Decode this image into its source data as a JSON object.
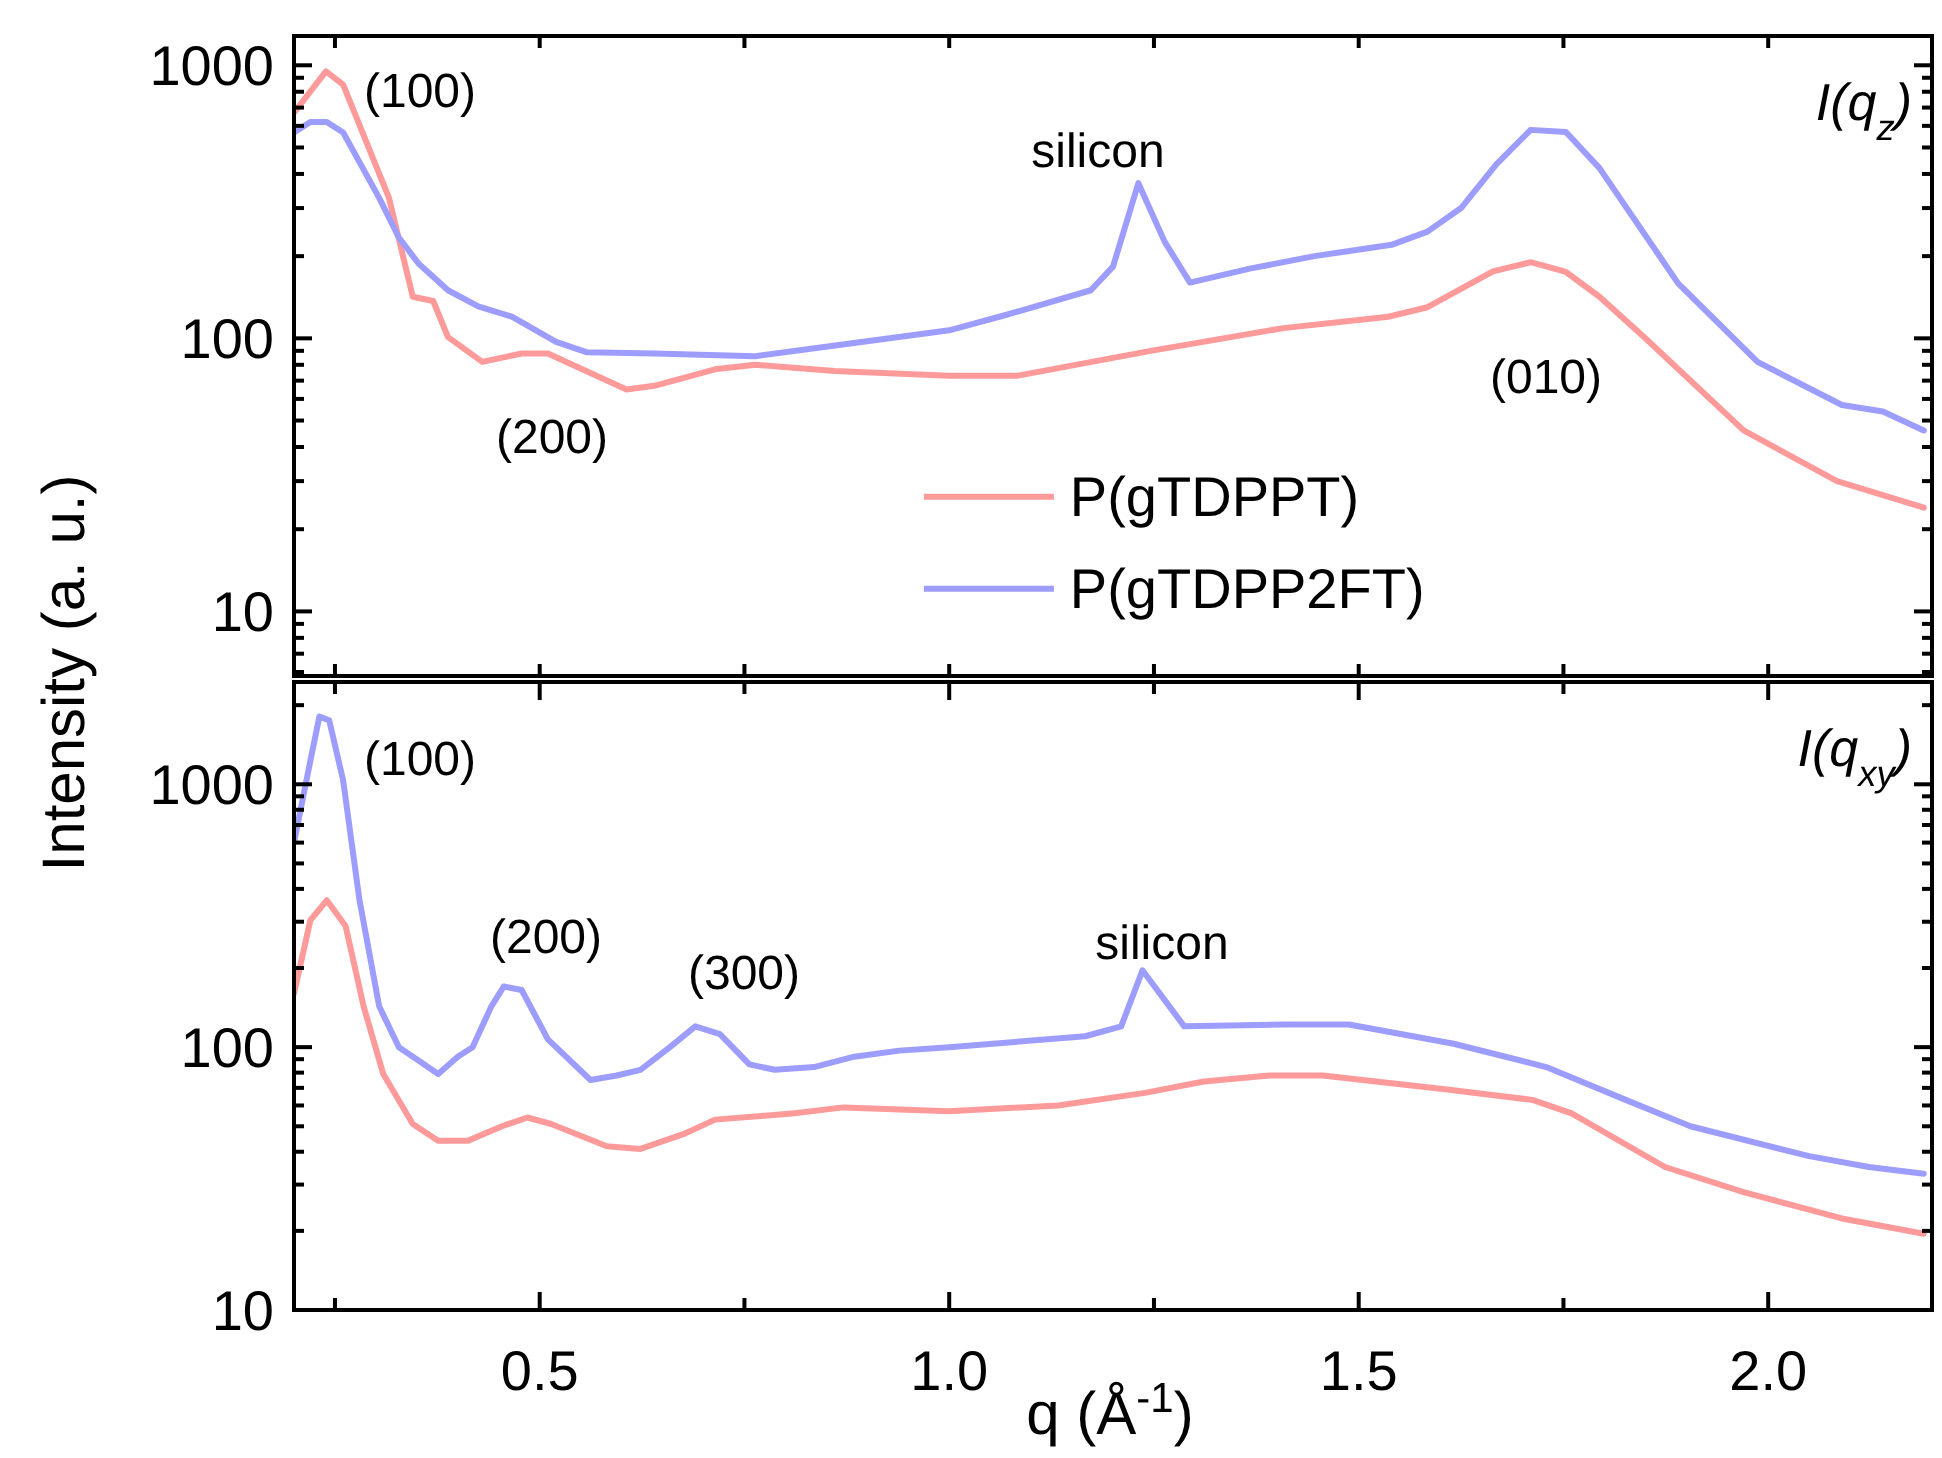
{
  "chart_data": [
    {
      "type": "line",
      "ylabel": "Intensity (a. u.)",
      "log": "y",
      "xlim": [
        0.2,
        2.2
      ],
      "ylim": [
        5.8,
        1280
      ],
      "xticks": [
        {
          "value": 0.25,
          "label": null
        },
        {
          "value": 0.5,
          "label": null
        },
        {
          "value": 0.75,
          "label": null
        },
        {
          "value": 1.0,
          "label": null
        },
        {
          "value": 1.25,
          "label": null
        },
        {
          "value": 1.5,
          "label": null
        },
        {
          "value": 1.75,
          "label": null
        },
        {
          "value": 2.0,
          "label": null
        }
      ],
      "yticks": [
        {
          "value": 6,
          "label": null
        },
        {
          "value": 7,
          "label": null
        },
        {
          "value": 8,
          "label": null
        },
        {
          "value": 9,
          "label": null
        },
        10,
        {
          "value": 20,
          "label": null
        },
        {
          "value": 30,
          "label": null
        },
        {
          "value": 40,
          "label": null
        },
        {
          "value": 50,
          "label": null
        },
        {
          "value": 60,
          "label": null
        },
        {
          "value": 70,
          "label": null
        },
        {
          "value": 80,
          "label": null
        },
        {
          "value": 90,
          "label": null
        },
        100,
        {
          "value": 200,
          "label": null
        },
        {
          "value": 300,
          "label": null
        },
        {
          "value": 400,
          "label": null
        },
        {
          "value": 500,
          "label": null
        },
        {
          "value": 600,
          "label": null
        },
        {
          "value": 700,
          "label": null
        },
        {
          "value": 800,
          "label": null
        },
        {
          "value": 900,
          "label": null
        },
        1000
      ],
      "tick_labels": "y",
      "grid": false,
      "legend": "bottom",
      "line_style": "solid",
      "marker": "none",
      "series": [
        {
          "name": "P(gTDPPT)",
          "color": "#ff9a9a",
          "x": [
            0.2,
            0.239,
            0.26,
            0.316,
            0.345,
            0.37,
            0.388,
            0.43,
            0.478,
            0.51,
            0.606,
            0.64,
            0.714,
            0.763,
            0.86,
            1.0,
            1.084,
            1.246,
            1.408,
            1.536,
            1.584,
            1.664,
            1.71,
            1.753,
            1.794,
            1.85,
            1.97,
            2.084,
            2.19
          ],
          "values": [
            670,
            950,
            850,
            327,
            142,
            137,
            101,
            82,
            88,
            88,
            65,
            67,
            77,
            80,
            76,
            73,
            73,
            90,
            109,
            120,
            130,
            176,
            190,
            175,
            142,
            100,
            46,
            30,
            24
          ]
        },
        {
          "name": "P(gTDPP2FT)",
          "color": "#9d9dff",
          "x": [
            0.2,
            0.22,
            0.24,
            0.26,
            0.304,
            0.328,
            0.352,
            0.388,
            0.425,
            0.466,
            0.52,
            0.557,
            0.64,
            0.763,
            0.87,
            1.0,
            1.07,
            1.173,
            1.2,
            1.231,
            1.263,
            1.294,
            1.367,
            1.446,
            1.54,
            1.584,
            1.625,
            1.668,
            1.71,
            1.753,
            1.794,
            1.89,
            1.987,
            2.09,
            2.14,
            2.19
          ],
          "values": [
            567,
            620,
            620,
            567,
            327,
            234,
            188,
            150,
            131,
            120,
            97,
            89,
            88,
            86,
            95,
            107,
            122,
            150,
            183,
            370,
            226,
            160,
            180,
            200,
            220,
            246,
            300,
            434,
            580,
            570,
            420,
            159,
            82,
            57,
            54,
            46
          ]
        }
      ],
      "annotations": [
        "(100)",
        "(200)",
        "silicon",
        "(010)",
        "I(q$_{z}$)"
      ]
    },
    {
      "type": "line",
      "xlabel": "q (Å$^{-1}$)",
      "log": "y",
      "xlim": [
        0.2,
        2.2
      ],
      "ylim": [
        10,
        2450
      ],
      "xticks": [
        {
          "value": 0.25,
          "label": null
        },
        0.5,
        {
          "value": 0.75,
          "label": null
        },
        {
          "value": 1.0,
          "label": "1.0"
        },
        {
          "value": 1.25,
          "label": null
        },
        1.5,
        {
          "value": 1.75,
          "label": null
        },
        {
          "value": 2.0,
          "label": "2.0"
        }
      ],
      "yticks": [
        10,
        {
          "value": 20,
          "label": null
        },
        {
          "value": 30,
          "label": null
        },
        {
          "value": 40,
          "label": null
        },
        {
          "value": 50,
          "label": null
        },
        {
          "value": 60,
          "label": null
        },
        {
          "value": 70,
          "label": null
        },
        {
          "value": 80,
          "label": null
        },
        {
          "value": 90,
          "label": null
        },
        100,
        {
          "value": 200,
          "label": null
        },
        {
          "value": 300,
          "label": null
        },
        {
          "value": 400,
          "label": null
        },
        {
          "value": 500,
          "label": null
        },
        {
          "value": 600,
          "label": null
        },
        {
          "value": 700,
          "label": null
        },
        {
          "value": 800,
          "label": null
        },
        {
          "value": 900,
          "label": null
        },
        1000,
        {
          "value": 2000,
          "label": null
        }
      ],
      "grid": false,
      "line_style": "solid",
      "marker": "none",
      "series": [
        {
          "color": "#ff9a9a",
          "x": [
            0.2,
            0.22,
            0.24,
            0.263,
            0.285,
            0.309,
            0.345,
            0.376,
            0.412,
            0.454,
            0.485,
            0.514,
            0.582,
            0.623,
            0.678,
            0.714,
            0.811,
            0.871,
            1.0,
            1.133,
            1.239,
            1.311,
            1.391,
            1.456,
            1.608,
            1.712,
            1.76,
            1.874,
            1.971,
            2.09,
            2.19
          ],
          "values": [
            160,
            304,
            362,
            289,
            143,
            79,
            51,
            44,
            44,
            50,
            54,
            51,
            42,
            41,
            47,
            53,
            56,
            59,
            57,
            60,
            67,
            74,
            78,
            78,
            69,
            63,
            56,
            35,
            28,
            22.3,
            19.5
          ]
        },
        {
          "color": "#9d9dff",
          "x": [
            0.2,
            0.22,
            0.231,
            0.243,
            0.26,
            0.28,
            0.304,
            0.328,
            0.352,
            0.376,
            0.4,
            0.418,
            0.441,
            0.456,
            0.478,
            0.51,
            0.562,
            0.594,
            0.623,
            0.659,
            0.69,
            0.72,
            0.756,
            0.787,
            0.835,
            0.884,
            0.939,
            1.0,
            1.166,
            1.21,
            1.236,
            1.287,
            1.408,
            1.488,
            1.616,
            1.729,
            1.826,
            1.905,
            2.05,
            2.123,
            2.19
          ],
          "values": [
            600,
            1230,
            1810,
            1750,
            1035,
            362,
            143,
            100,
            89,
            79,
            92,
            100,
            143,
            170,
            165,
            107,
            75,
            78,
            82,
            100,
            120,
            112,
            86,
            82,
            84,
            92,
            97,
            100,
            110,
            120,
            196,
            120,
            122,
            122,
            103,
            84,
            63,
            50,
            38.5,
            35,
            33
          ]
        }
      ],
      "annotations": [
        "(100)",
        "(200)",
        "(300)",
        "silicon",
        "I(q$_{xy}$)"
      ]
    }
  ]
}
